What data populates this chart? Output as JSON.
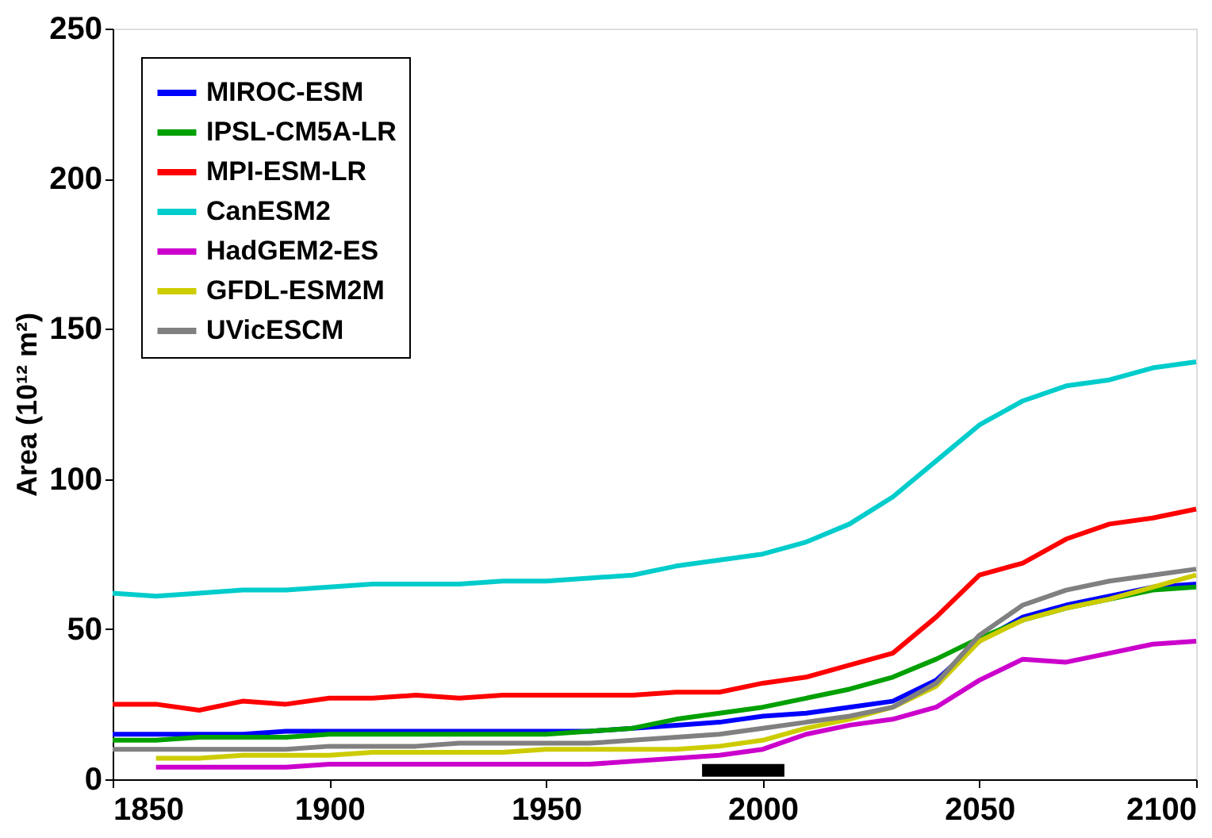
{
  "chart_data": {
    "type": "line",
    "ylabel": "Area (10¹² m²)",
    "x": [
      1850,
      1860,
      1870,
      1880,
      1890,
      1900,
      1910,
      1920,
      1930,
      1940,
      1950,
      1960,
      1970,
      1980,
      1990,
      2000,
      2010,
      2020,
      2030,
      2040,
      2050,
      2060,
      2070,
      2080,
      2090,
      2100
    ],
    "series": [
      {
        "name": "MIROC-ESM",
        "color": "#0000ff",
        "values": [
          15,
          15,
          15,
          15,
          16,
          16,
          16,
          16,
          16,
          16,
          16,
          16,
          17,
          18,
          19,
          21,
          22,
          24,
          26,
          33,
          46,
          54,
          58,
          61,
          64,
          65
        ]
      },
      {
        "name": "IPSL-CM5A-LR",
        "color": "#00a000",
        "values": [
          13,
          13,
          14,
          14,
          14,
          15,
          15,
          15,
          15,
          15,
          15,
          16,
          17,
          20,
          22,
          24,
          27,
          30,
          34,
          40,
          47,
          53,
          57,
          60,
          63,
          64
        ]
      },
      {
        "name": "MPI-ESM-LR",
        "color": "#ff0000",
        "values": [
          25,
          25,
          23,
          26,
          25,
          27,
          27,
          28,
          27,
          28,
          28,
          28,
          28,
          29,
          29,
          32,
          34,
          38,
          42,
          54,
          68,
          72,
          80,
          85,
          87,
          90
        ]
      },
      {
        "name": "CanESM2",
        "color": "#00cccc",
        "values": [
          62,
          61,
          62,
          63,
          63,
          64,
          65,
          65,
          65,
          66,
          66,
          67,
          68,
          71,
          73,
          75,
          79,
          85,
          94,
          106,
          118,
          126,
          131,
          133,
          137,
          139
        ]
      },
      {
        "name": "HadGEM2-ES",
        "color": "#cc00cc",
        "values": [
          null,
          4,
          4,
          4,
          4,
          5,
          5,
          5,
          5,
          5,
          5,
          5,
          6,
          7,
          8,
          10,
          15,
          18,
          20,
          24,
          33,
          40,
          39,
          42,
          45,
          46
        ]
      },
      {
        "name": "GFDL-ESM2M",
        "color": "#cccc00",
        "values": [
          null,
          7,
          7,
          8,
          8,
          8,
          9,
          9,
          9,
          9,
          10,
          10,
          10,
          10,
          11,
          13,
          17,
          20,
          24,
          31,
          46,
          53,
          57,
          60,
          64,
          68
        ]
      },
      {
        "name": "UVicESCM",
        "color": "#808080",
        "values": [
          10,
          10,
          10,
          10,
          10,
          11,
          11,
          11,
          12,
          12,
          12,
          12,
          13,
          14,
          15,
          17,
          19,
          21,
          24,
          32,
          48,
          58,
          63,
          66,
          68,
          70
        ]
      },
      {
        "color": "#000000",
        "x": [
          1986,
          2005
        ],
        "values": [
          3,
          3
        ]
      }
    ],
    "xlim": [
      1850,
      2100
    ],
    "xticks": [
      1850,
      1900,
      1950,
      2000,
      2050,
      2100
    ],
    "ylim": [
      0,
      250
    ],
    "yticks": [
      0,
      50,
      100,
      150,
      200,
      250
    ],
    "grid": false,
    "legend": "top left",
    "line_style": "solid",
    "marker": "none"
  }
}
